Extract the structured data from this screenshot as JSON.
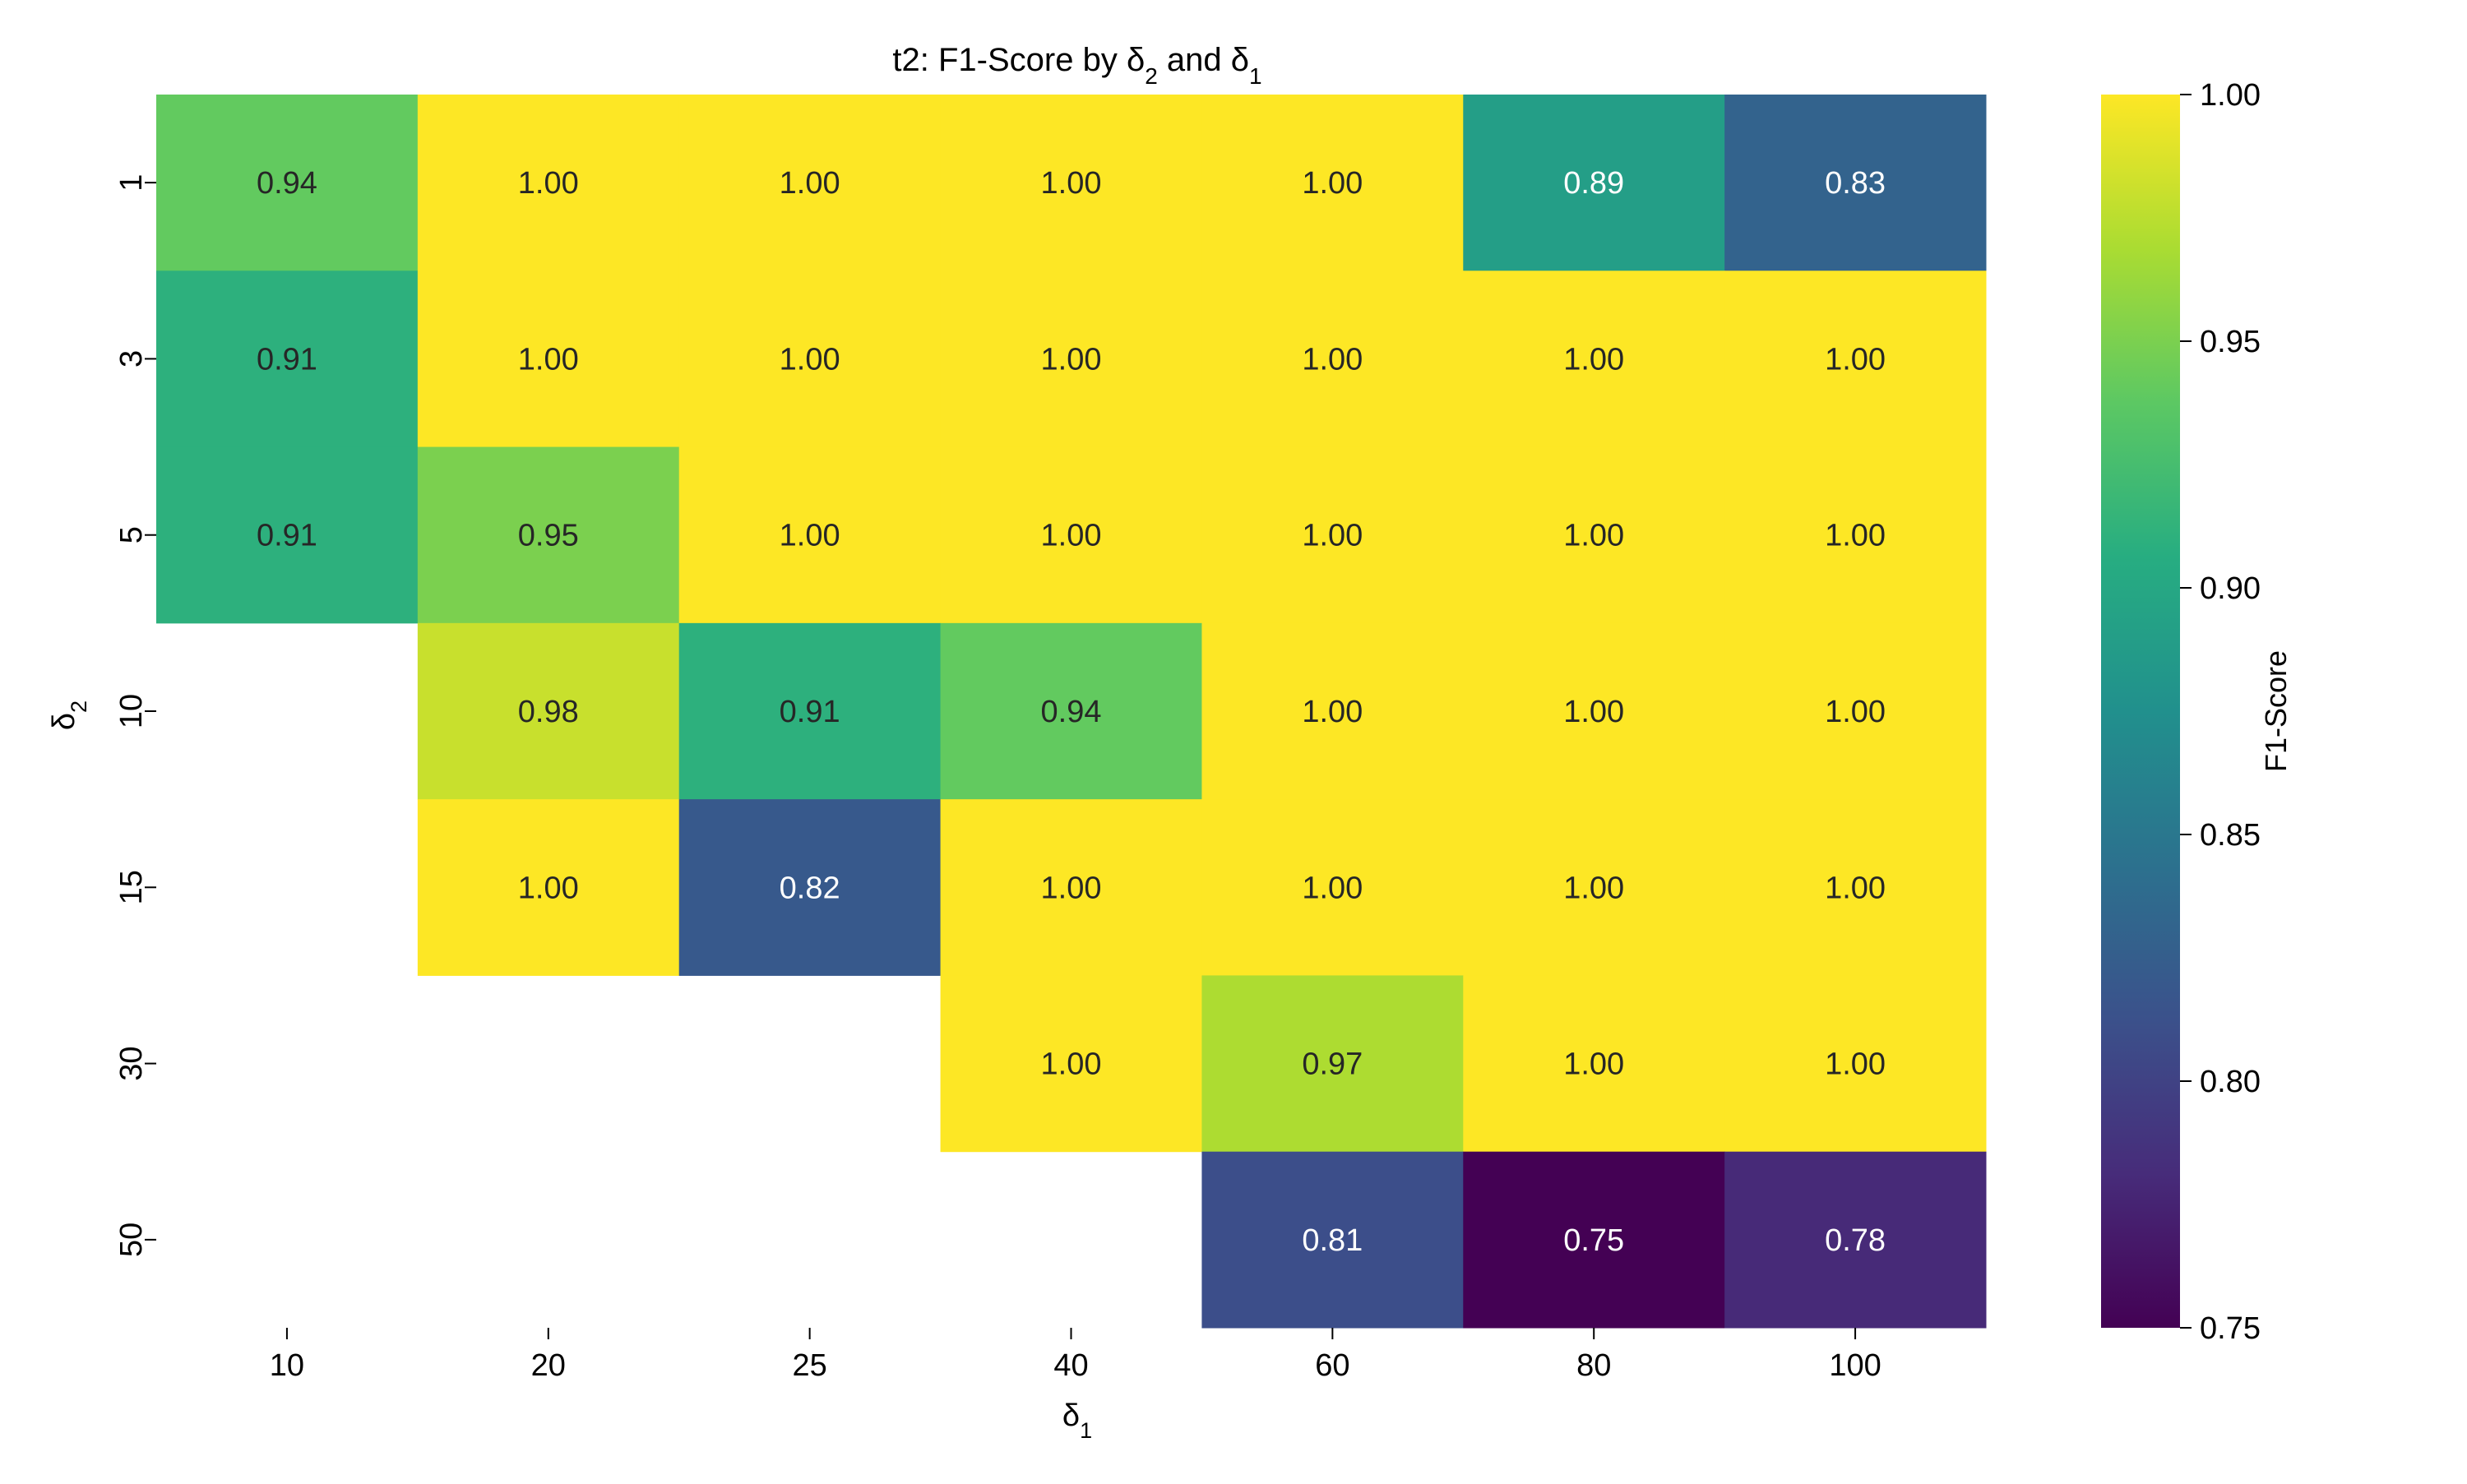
{
  "chart_data": {
    "type": "heatmap",
    "title": {
      "prefix": "t2: F1-Score by δ",
      "sub_a": "2",
      "middle": " and δ",
      "sub_b": "1"
    },
    "xlabel": {
      "main": "δ",
      "sub": "1"
    },
    "ylabel": {
      "main": "δ",
      "sub": "2"
    },
    "x_categories": [
      "10",
      "20",
      "25",
      "40",
      "60",
      "80",
      "100"
    ],
    "y_categories": [
      "1",
      "3",
      "5",
      "10",
      "15",
      "30",
      "50"
    ],
    "values": [
      [
        0.94,
        1.0,
        1.0,
        1.0,
        1.0,
        0.89,
        0.83
      ],
      [
        0.91,
        1.0,
        1.0,
        1.0,
        1.0,
        1.0,
        1.0
      ],
      [
        0.91,
        0.95,
        1.0,
        1.0,
        1.0,
        1.0,
        1.0
      ],
      [
        null,
        0.98,
        0.91,
        0.94,
        1.0,
        1.0,
        1.0
      ],
      [
        null,
        1.0,
        0.82,
        1.0,
        1.0,
        1.0,
        1.0
      ],
      [
        null,
        null,
        null,
        1.0,
        0.97,
        1.0,
        1.0
      ],
      [
        null,
        null,
        null,
        null,
        0.81,
        0.75,
        0.78
      ]
    ],
    "value_format": "0.00",
    "colormap": "viridis",
    "vmin": 0.75,
    "vmax": 1.0,
    "colorbar": {
      "label": "F1-Score",
      "ticks": [
        "0.75",
        "0.80",
        "0.85",
        "0.90",
        "0.95",
        "1.00"
      ]
    },
    "colors": {
      "background": "#ffffff",
      "text_dark": "#262626",
      "text_light": "#ffffff",
      "axis": "#000000"
    }
  }
}
